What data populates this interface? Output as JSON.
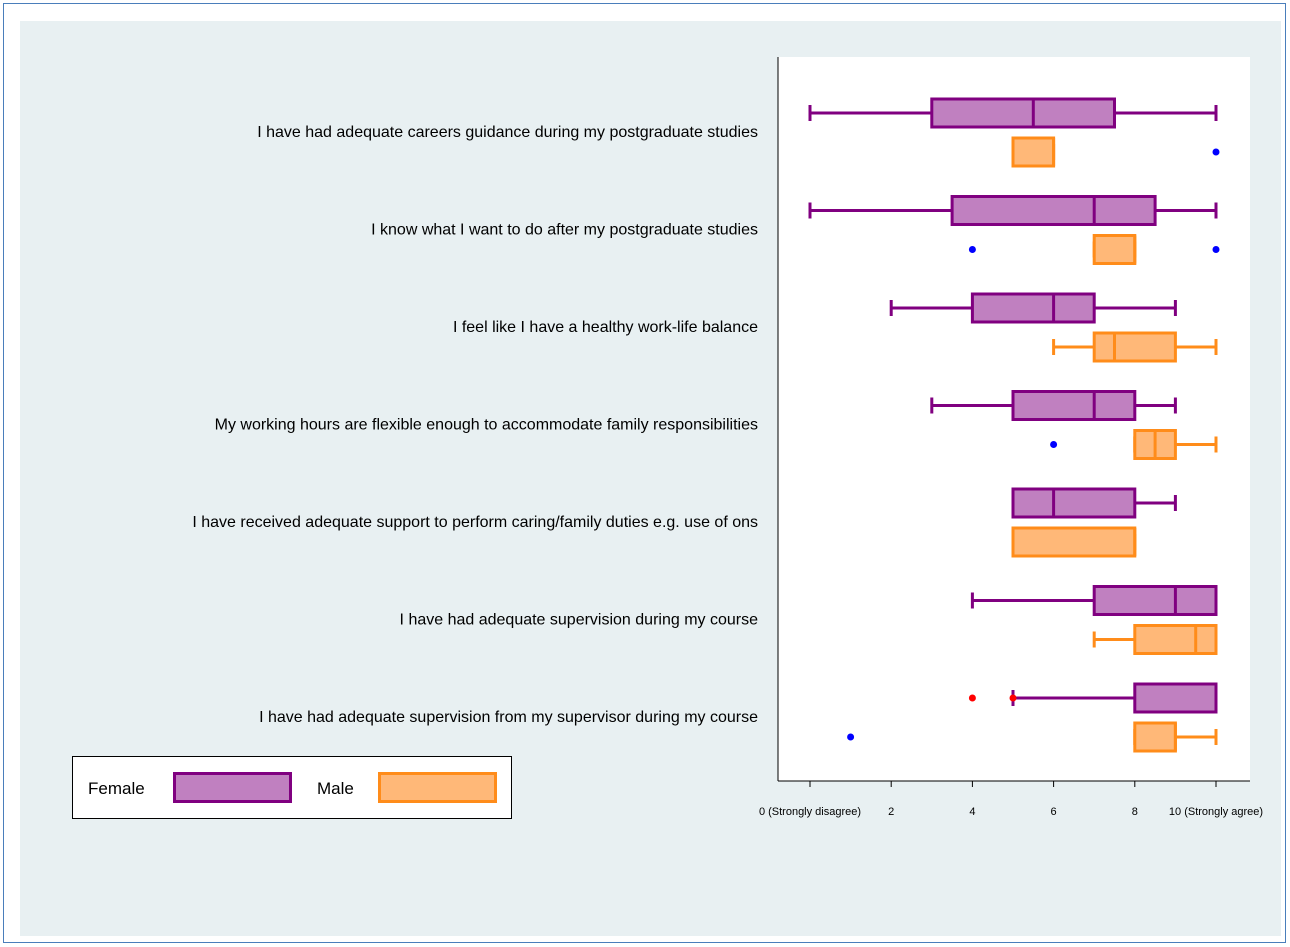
{
  "chart_data": {
    "type": "boxplot",
    "orientation": "horizontal",
    "xlim": [
      -0.8,
      11
    ],
    "x_ticks": [
      {
        "value": 0,
        "label": "0 (Strongly disagree)"
      },
      {
        "value": 2,
        "label": "2"
      },
      {
        "value": 4,
        "label": "4"
      },
      {
        "value": 6,
        "label": "6"
      },
      {
        "value": 8,
        "label": "8"
      },
      {
        "value": 10,
        "label": "10 (Strongly agree)"
      }
    ],
    "categories": [
      "I have had adequate careers guidance during my postgraduate studies",
      "I know what I want to do after my postgraduate studies",
      "I feel like I have a healthy work-life balance",
      "My working hours are flexible enough to accommodate family responsibilities",
      "I have received adequate support to perform caring/family duties e.g. use of ons",
      "I have had adequate supervision during my course",
      "I have had adequate supervision from my supervisor during my course"
    ],
    "series": [
      {
        "name": "Female",
        "fill": "#c080c0",
        "stroke": "#800080",
        "outlier_color": "#ff0000",
        "boxes": [
          {
            "whisker_low": 0,
            "q1": 3,
            "median": 5.5,
            "q3": 7.5,
            "whisker_high": 10,
            "outliers": []
          },
          {
            "whisker_low": 0,
            "q1": 3.5,
            "median": 7,
            "q3": 8.5,
            "whisker_high": 10,
            "outliers": []
          },
          {
            "whisker_low": 2,
            "q1": 4,
            "median": 6,
            "q3": 7,
            "whisker_high": 9,
            "outliers": []
          },
          {
            "whisker_low": 3,
            "q1": 5,
            "median": 7,
            "q3": 8,
            "whisker_high": 9,
            "outliers": []
          },
          {
            "whisker_low": 5,
            "q1": 5,
            "median": 6,
            "q3": 8,
            "whisker_high": 9,
            "outliers": []
          },
          {
            "whisker_low": 4,
            "q1": 7,
            "median": 9,
            "q3": 10,
            "whisker_high": 10,
            "outliers": []
          },
          {
            "whisker_low": 5,
            "q1": 8,
            "median": 10,
            "q3": 10,
            "whisker_high": 10,
            "outliers": [
              4,
              5
            ]
          }
        ]
      },
      {
        "name": "Male",
        "fill": "#ffb878",
        "stroke": "#ff8c1a",
        "outlier_color": "#0000ff",
        "boxes": [
          {
            "whisker_low": 5,
            "q1": 5,
            "median": 6,
            "q3": 6,
            "whisker_high": 6,
            "outliers": [
              10
            ]
          },
          {
            "whisker_low": 7,
            "q1": 7,
            "median": 8,
            "q3": 8,
            "whisker_high": 8,
            "outliers": [
              4,
              10
            ]
          },
          {
            "whisker_low": 6,
            "q1": 7,
            "median": 7.5,
            "q3": 9,
            "whisker_high": 10,
            "outliers": []
          },
          {
            "whisker_low": 8,
            "q1": 8,
            "median": 8.5,
            "q3": 9,
            "whisker_high": 10,
            "outliers": [
              6
            ]
          },
          {
            "whisker_low": 5,
            "q1": 5,
            "median": 8,
            "q3": 8,
            "whisker_high": 8,
            "outliers": []
          },
          {
            "whisker_low": 7,
            "q1": 8,
            "median": 9.5,
            "q3": 10,
            "whisker_high": 10,
            "outliers": []
          },
          {
            "whisker_low": 8,
            "q1": 8,
            "median": 9,
            "q3": 9,
            "whisker_high": 10,
            "outliers": [
              1
            ]
          }
        ]
      }
    ],
    "legend": {
      "placement": "bottom-left",
      "entries": [
        "Female",
        "Male"
      ]
    },
    "grid": false,
    "title": "",
    "xlabel": "",
    "ylabel": ""
  },
  "legend": {
    "female_label": "Female",
    "male_label": "Male"
  },
  "colors": {
    "background_panel": "#e8f0f2",
    "frame_border": "#4a7ebb",
    "female_fill": "#c080c0",
    "female_stroke": "#800080",
    "male_fill": "#ffb878",
    "male_stroke": "#ff8c1a"
  }
}
